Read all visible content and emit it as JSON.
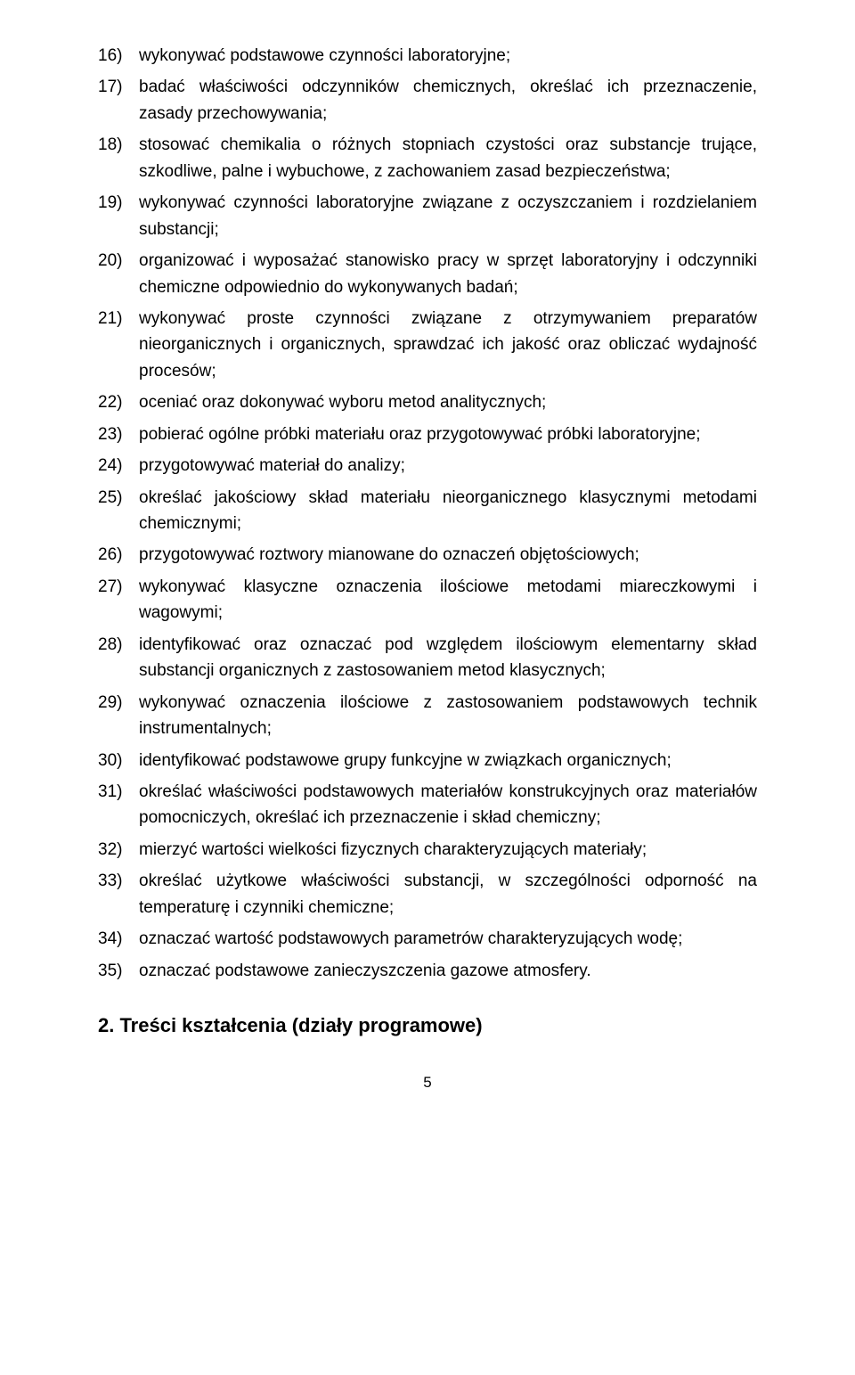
{
  "items": [
    {
      "n": "16)",
      "t": "wykonywać podstawowe czynności laboratoryjne;"
    },
    {
      "n": "17)",
      "t": "badać właściwości odczynników chemicznych, określać ich przeznaczenie, zasady przechowywania;"
    },
    {
      "n": "18)",
      "t": "stosować chemikalia o różnych stopniach czystości oraz substancje trujące, szkodliwe, palne i wybuchowe, z zachowaniem zasad bezpieczeństwa;"
    },
    {
      "n": "19)",
      "t": "wykonywać czynności laboratoryjne związane z oczyszczaniem i rozdzielaniem substancji;"
    },
    {
      "n": "20)",
      "t": "organizować i wyposażać stanowisko pracy w sprzęt laboratoryjny i odczynniki chemiczne odpowiednio do wykonywanych badań;"
    },
    {
      "n": "21)",
      "t": "wykonywać proste czynności związane z otrzymywaniem preparatów nieorganicznych i organicznych, sprawdzać ich jakość oraz obliczać wydajność procesów;"
    },
    {
      "n": "22)",
      "t": "oceniać oraz dokonywać wyboru metod analitycznych;"
    },
    {
      "n": "23)",
      "t": "pobierać ogólne próbki materiału oraz przygotowywać próbki laboratoryjne;"
    },
    {
      "n": "24)",
      "t": "przygotowywać materiał do analizy;"
    },
    {
      "n": "25)",
      "t": "określać jakościowy skład materiału nieorganicznego klasycznymi metodami chemicznymi;"
    },
    {
      "n": "26)",
      "t": "przygotowywać roztwory mianowane do oznaczeń objętościowych;"
    },
    {
      "n": "27)",
      "t": "wykonywać klasyczne oznaczenia ilościowe metodami miareczkowymi i wagowymi;"
    },
    {
      "n": "28)",
      "t": "identyfikować oraz oznaczać pod względem ilościowym elementarny skład substancji organicznych z zastosowaniem metod klasycznych;"
    },
    {
      "n": "29)",
      "t": "wykonywać oznaczenia ilościowe z zastosowaniem podstawowych technik instrumentalnych;"
    },
    {
      "n": "30)",
      "t": "identyfikować podstawowe grupy funkcyjne w związkach organicznych;"
    },
    {
      "n": "31)",
      "t": "określać właściwości podstawowych materiałów konstrukcyjnych oraz materiałów pomocniczych, określać ich przeznaczenie i skład chemiczny;"
    },
    {
      "n": "32)",
      "t": "mierzyć wartości wielkości fizycznych charakteryzujących materiały;"
    },
    {
      "n": "33)",
      "t": "określać użytkowe właściwości substancji, w szczególności odporność na temperaturę i czynniki chemiczne;"
    },
    {
      "n": "34)",
      "t": "oznaczać wartość podstawowych parametrów charakteryzujących wodę;"
    },
    {
      "n": "35)",
      "t": "oznaczać podstawowe zanieczyszczenia gazowe atmosfery."
    }
  ],
  "heading": "2.  Treści kształcenia (działy programowe)",
  "page_number": "5"
}
